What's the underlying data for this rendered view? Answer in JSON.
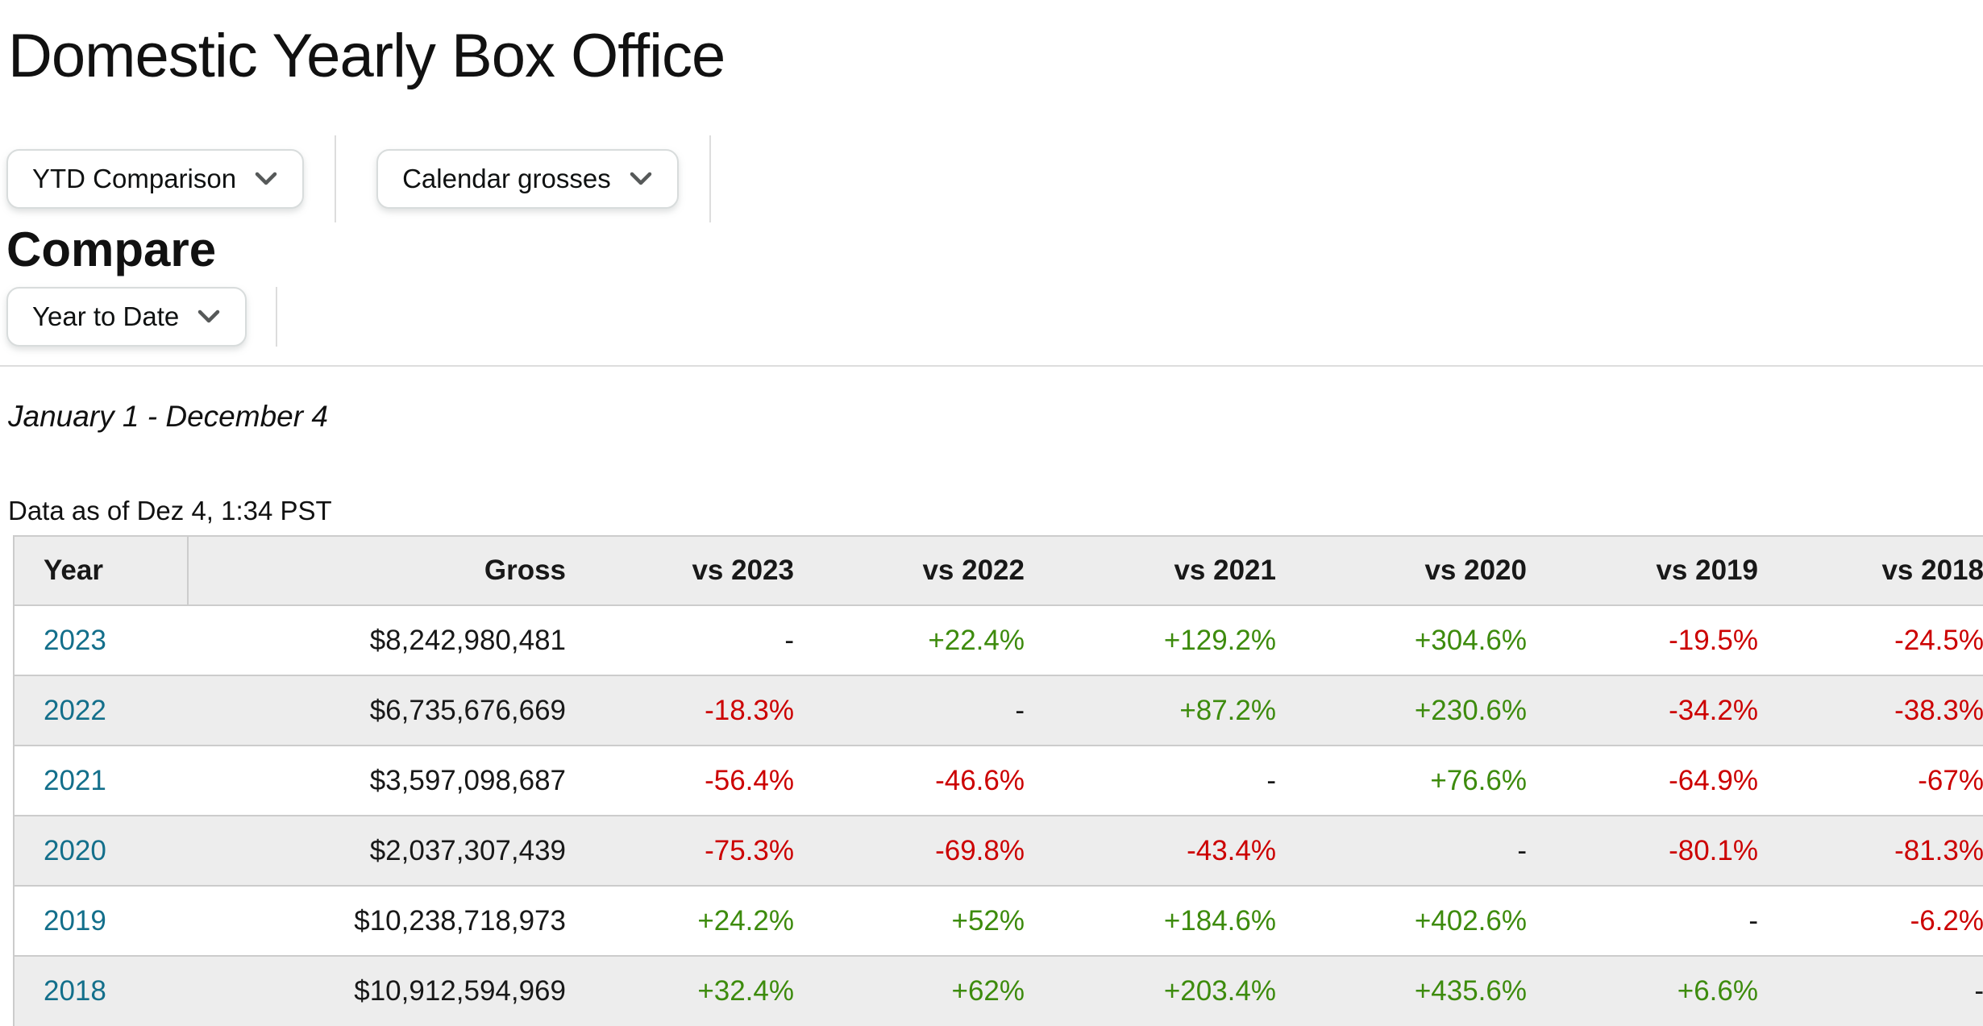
{
  "title": "Domestic Yearly Box Office",
  "filters": {
    "buttons": [
      {
        "label": "YTD Comparison"
      },
      {
        "label": "Calendar grosses"
      }
    ]
  },
  "compare": {
    "heading": "Compare",
    "selector_label": "Year to Date"
  },
  "date_range": "January 1 - December 4",
  "data_as_of": "Data as of Dez 4, 1:34 PST",
  "colors": {
    "positive": "#3D8B0D",
    "negative": "#CC0000",
    "year_link": "#136F8B",
    "row_alt_bg": "#EDEDED",
    "table_border": "#CCCCCC"
  },
  "table": {
    "columns": [
      "Year",
      "Gross",
      "vs 2023",
      "vs 2022",
      "vs 2021",
      "vs 2020",
      "vs 2019",
      "vs 2018"
    ],
    "rows": [
      {
        "year": "2023",
        "gross": "$8,242,980,481",
        "vs": [
          "-",
          "+22.4%",
          "+129.2%",
          "+304.6%",
          "-19.5%",
          "-24.5%"
        ]
      },
      {
        "year": "2022",
        "gross": "$6,735,676,669",
        "vs": [
          "-18.3%",
          "-",
          "+87.2%",
          "+230.6%",
          "-34.2%",
          "-38.3%"
        ]
      },
      {
        "year": "2021",
        "gross": "$3,597,098,687",
        "vs": [
          "-56.4%",
          "-46.6%",
          "-",
          "+76.6%",
          "-64.9%",
          "-67%"
        ]
      },
      {
        "year": "2020",
        "gross": "$2,037,307,439",
        "vs": [
          "-75.3%",
          "-69.8%",
          "-43.4%",
          "-",
          "-80.1%",
          "-81.3%"
        ]
      },
      {
        "year": "2019",
        "gross": "$10,238,718,973",
        "vs": [
          "+24.2%",
          "+52%",
          "+184.6%",
          "+402.6%",
          "-",
          "-6.2%"
        ]
      },
      {
        "year": "2018",
        "gross": "$10,912,594,969",
        "vs": [
          "+32.4%",
          "+62%",
          "+203.4%",
          "+435.6%",
          "+6.6%",
          "-"
        ]
      }
    ]
  }
}
